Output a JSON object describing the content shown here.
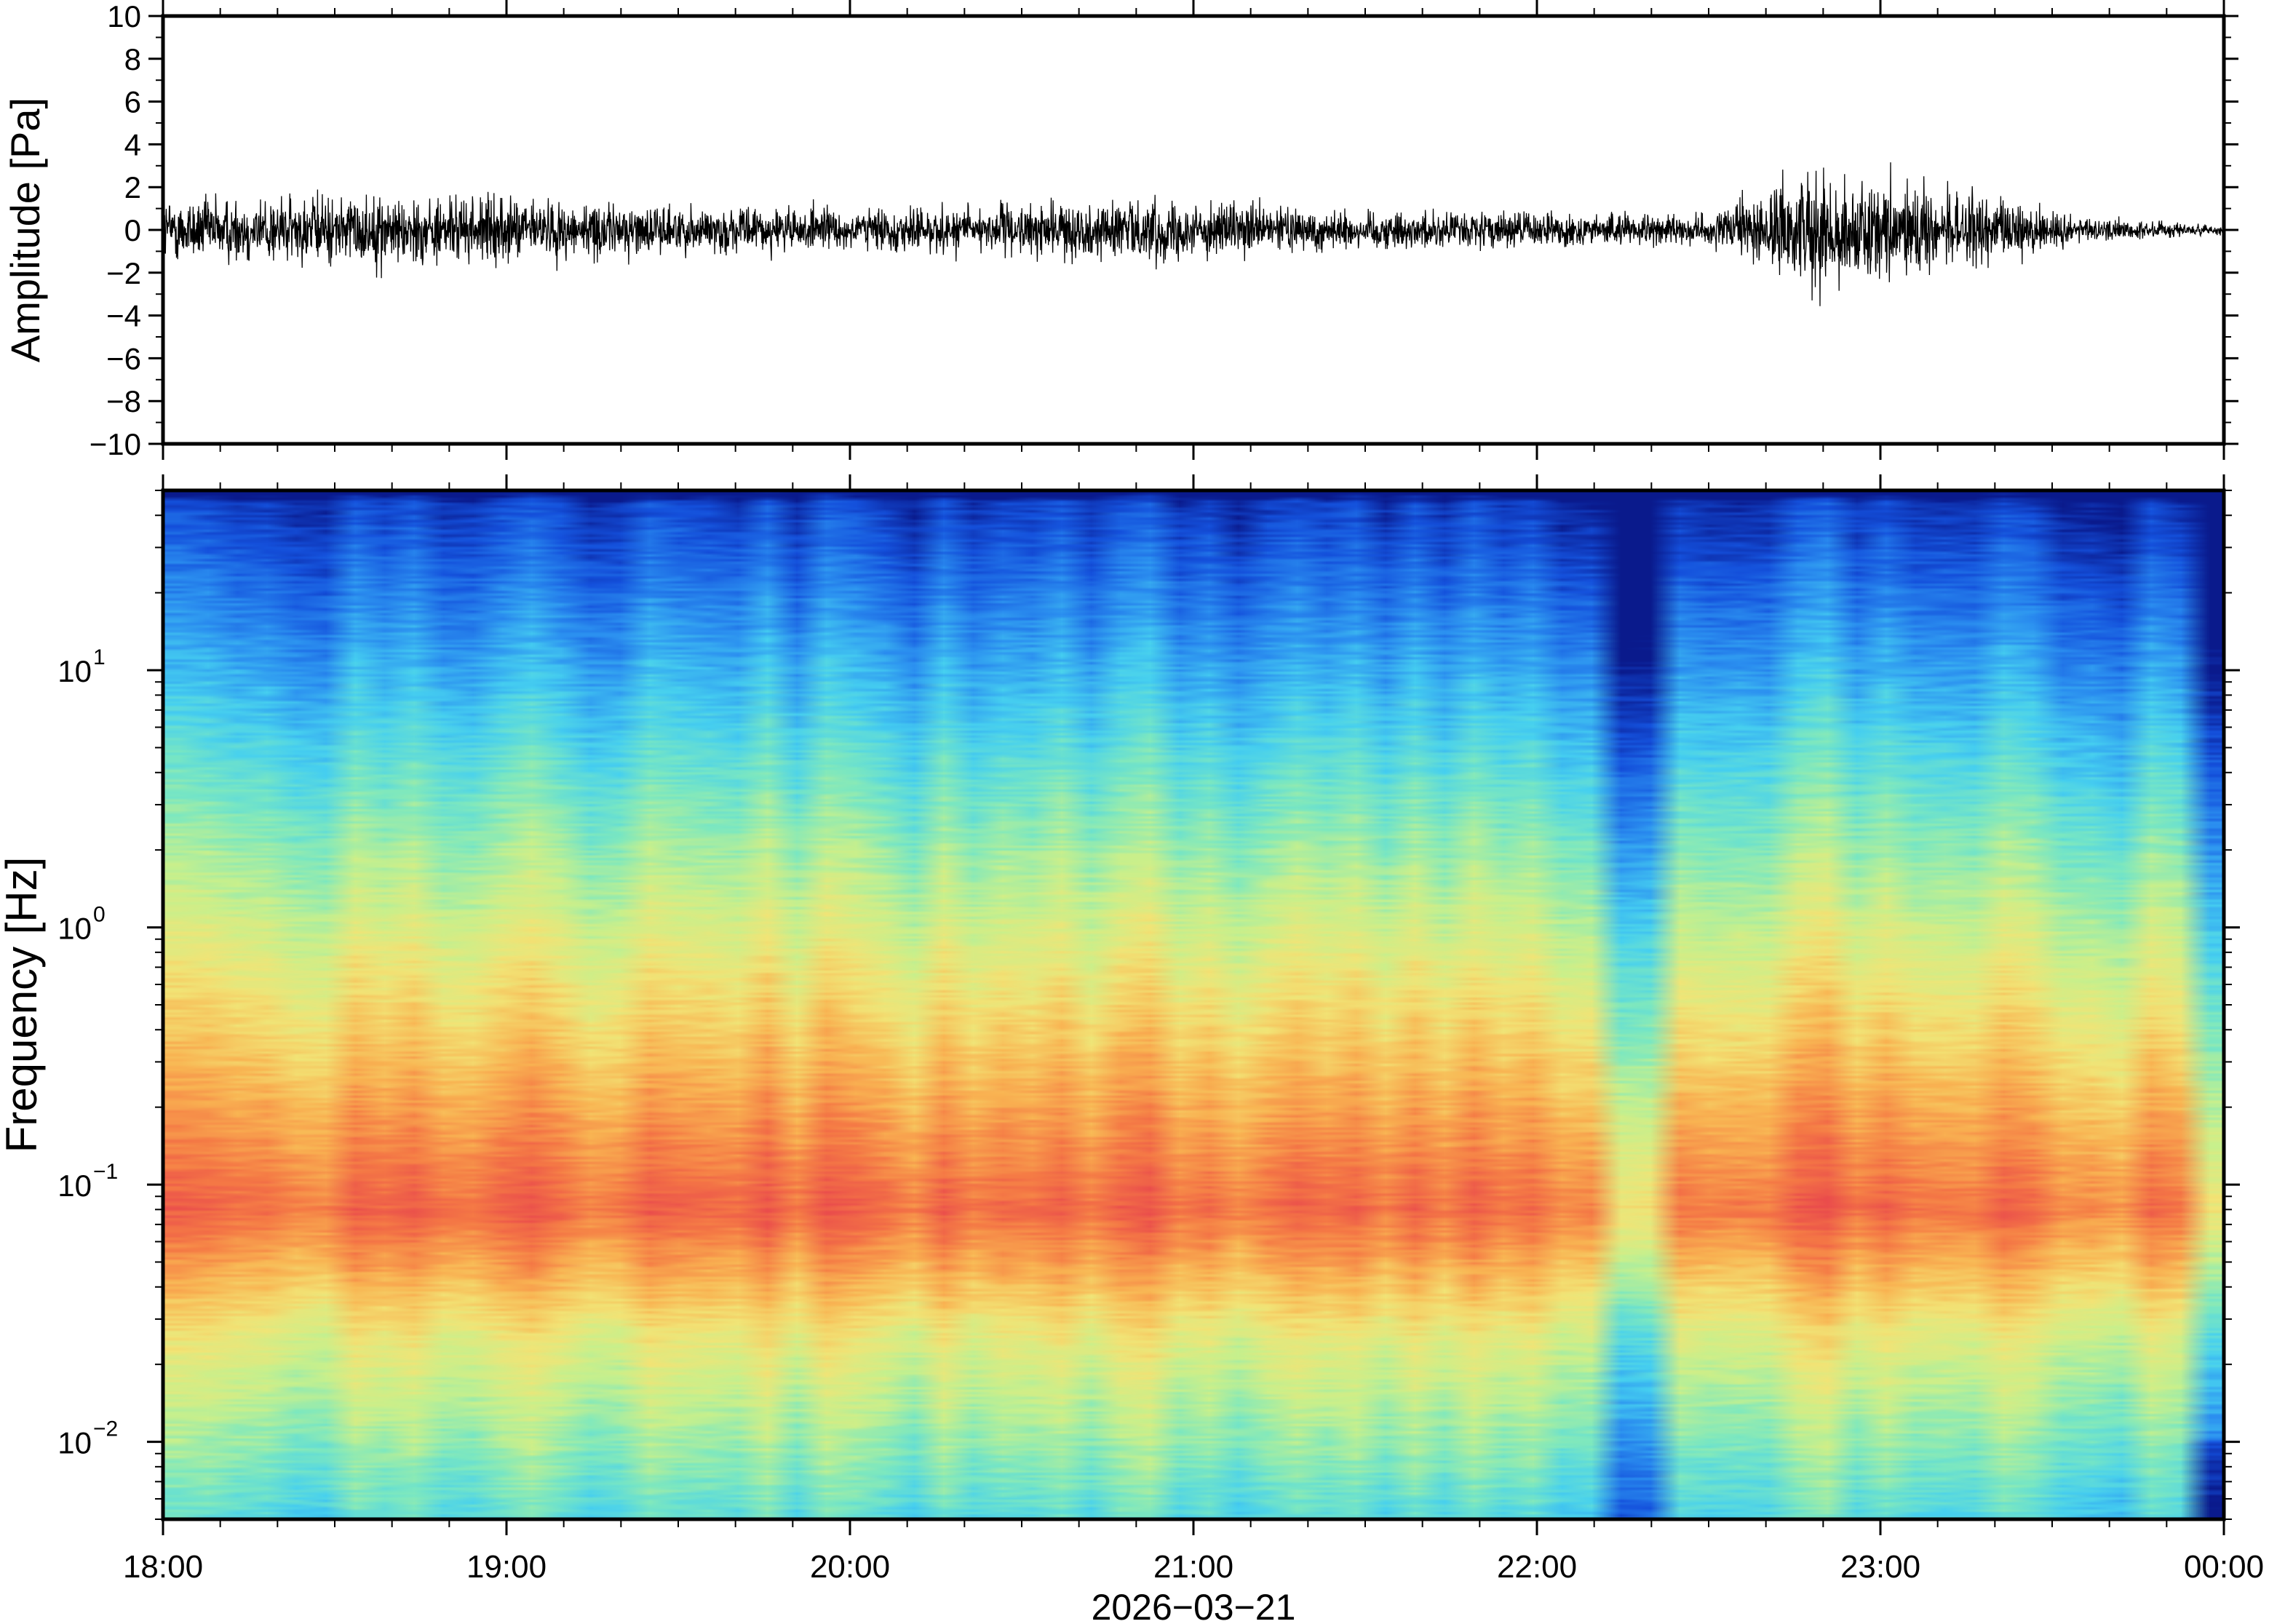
{
  "chart_data": [
    {
      "type": "line",
      "panel": "waveform",
      "ylabel": "Amplitude [Pa]",
      "ylim": [
        -10,
        10
      ],
      "yticks": [
        10,
        8,
        6,
        4,
        2,
        0,
        -2,
        -4,
        -6,
        -8,
        -10
      ],
      "ytick_labels": [
        "10",
        "8",
        "6",
        "4",
        "2",
        "0",
        "−2",
        "−4",
        "−6",
        "−8",
        "−10"
      ],
      "x_range": [
        "18:00",
        "00:00"
      ],
      "envelope": {
        "x_hours": [
          0,
          0.5,
          1,
          1.5,
          2,
          2.5,
          2.9,
          3.0,
          3.5,
          4.0,
          4.5,
          4.8,
          5.0,
          5.3,
          5.6,
          6.0
        ],
        "max_abs_pa": [
          1.8,
          2.0,
          1.8,
          1.3,
          1.2,
          1.4,
          1.8,
          1.5,
          1.1,
          1.0,
          0.8,
          3.5,
          2.6,
          2.0,
          0.7,
          0.3
        ]
      },
      "color": "#000000"
    },
    {
      "type": "heatmap",
      "panel": "spectrogram",
      "ylabel": "Frequency [Hz]",
      "yscale": "log",
      "ylim": [
        0.005,
        50
      ],
      "yticks": [
        10,
        1,
        0.1,
        0.01
      ],
      "ytick_labels": [
        {
          "base": "10",
          "exp": "1"
        },
        {
          "base": "10",
          "exp": "0"
        },
        {
          "base": "10",
          "exp": "−1"
        },
        {
          "base": "10",
          "exp": "−2"
        }
      ],
      "colormap": [
        "#0a1a8c",
        "#1450dc",
        "#2b8ff0",
        "#46d0f0",
        "#7ce8c0",
        "#c8f08c",
        "#f2e476",
        "#f9b452",
        "#f57a45",
        "#ea4c4c"
      ],
      "time_bins": 70,
      "peak_band_hz": [
        0.04,
        0.15
      ],
      "quiet_column_time": "22:18"
    }
  ],
  "x_axis": {
    "tick_labels": [
      "18:00",
      "19:00",
      "20:00",
      "21:00",
      "22:00",
      "23:00",
      "00:00"
    ],
    "date_label": "2026−03−21"
  }
}
